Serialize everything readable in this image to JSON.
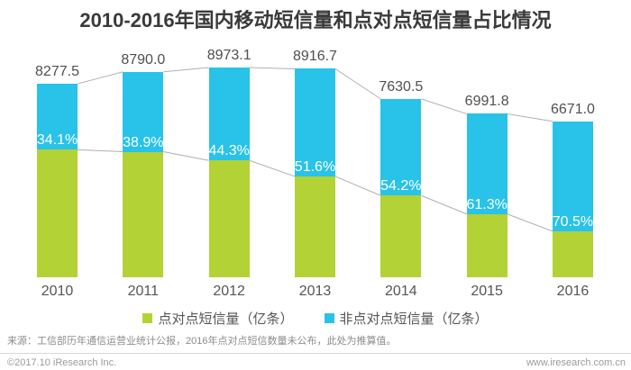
{
  "page": {
    "title": "2010-2016年国内移动短信量和点对点短信量占比情况"
  },
  "chart_data": {
    "type": "bar",
    "stacked": true,
    "title": "2010-2016年国内移动短信量和点对点短信量占比情况",
    "categories": [
      "2010",
      "2011",
      "2012",
      "2013",
      "2014",
      "2015",
      "2016"
    ],
    "totals": [
      8277.5,
      8790.0,
      8973.1,
      8916.7,
      7630.5,
      6991.8,
      6671.0
    ],
    "total_labels": [
      "8277.5",
      "8790.0",
      "8973.1",
      "8916.7",
      "7630.5",
      "6991.8",
      "6671.0"
    ],
    "percent_labels": [
      "34.1%",
      "38.9%",
      "44.3%",
      "51.6%",
      "54.2%",
      "61.3%",
      "70.5%"
    ],
    "non_p2p_share_pct": [
      34.1,
      38.9,
      44.3,
      51.6,
      54.2,
      61.3,
      70.5
    ],
    "series": [
      {
        "name": "点对点短信量（亿条）",
        "color": "#B2D235"
      },
      {
        "name": "非点对点短信量（亿条）",
        "color": "#29C2E8"
      }
    ],
    "unit": "亿条",
    "legend_position": "bottom",
    "gridlines": false,
    "connector_lines": true
  },
  "legend": {
    "items": [
      {
        "label": "点对点短信量（亿条）",
        "color": "#B2D235"
      },
      {
        "label": "非点对点短信量（亿条）",
        "color": "#29C2E8"
      }
    ]
  },
  "footer": {
    "source": "来源：工信部历年通信运营业统计公报，2016年点对点短信数量未公布，此处为推算值。",
    "copyright": "©2017.10 iResearch Inc.",
    "website": "www.iresearch.com.cn"
  },
  "colors": {
    "p2p_green": "#B2D235",
    "non_p2p_blue": "#29C2E8",
    "connector_gray": "#b0b0b0",
    "title_text": "#3a3a3a",
    "value_text": "#4f4f4f",
    "axis_text": "#555555",
    "footer_text": "#9b9b9b"
  }
}
